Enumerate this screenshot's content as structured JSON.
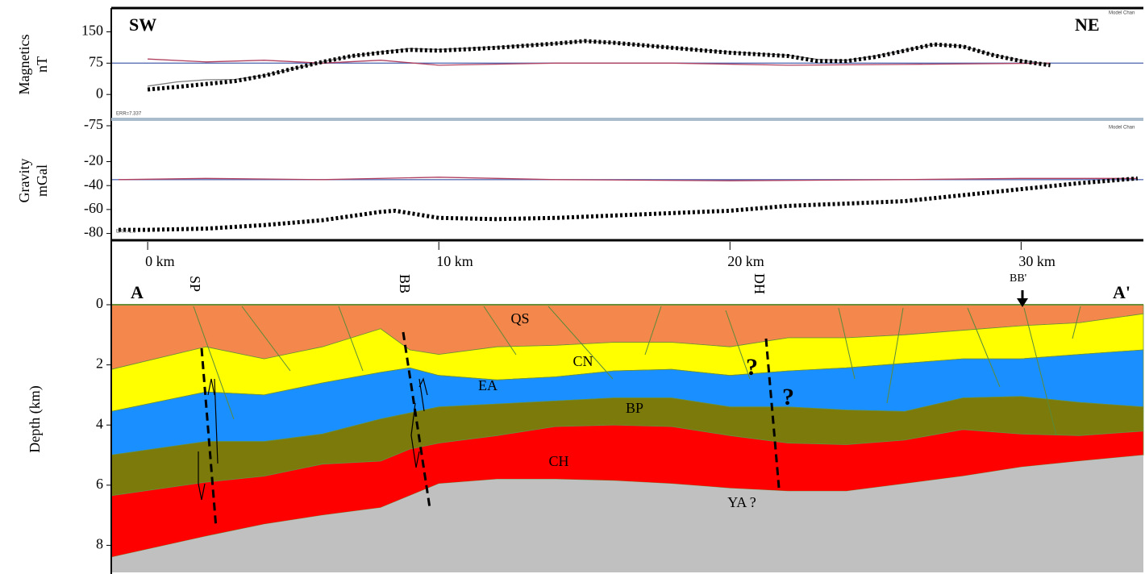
{
  "chart_data": [
    {
      "type": "line",
      "direction_left": "SW",
      "direction_right": "NE",
      "ylabel": [
        "Magnetics",
        "nT"
      ],
      "note": "Model Chan",
      "error": "ERR=7.337",
      "xlim": [
        -1.25,
        34.2
      ],
      "ylim": [
        -75,
        207
      ],
      "yticks": [
        150,
        75,
        0,
        -75
      ],
      "series": [
        {
          "color": "#5b6fb5",
          "style": "solid",
          "x": [
            -1.25,
            34.2
          ],
          "values": [
            75,
            75
          ]
        },
        {
          "color": "#b04060",
          "style": "solid",
          "x": [
            0,
            2,
            4,
            6,
            8,
            10,
            14,
            18,
            22,
            26,
            31
          ],
          "values": [
            85,
            78,
            82,
            75,
            82,
            70,
            75,
            75,
            70,
            72,
            75
          ]
        },
        {
          "color": "#808080",
          "style": "solid",
          "x": [
            0,
            1,
            2,
            3,
            4,
            5,
            6,
            7,
            8,
            9,
            10,
            12,
            14,
            15,
            16,
            18,
            20,
            22,
            23,
            24,
            25,
            26,
            27,
            28,
            29,
            30,
            31
          ],
          "values": [
            20,
            30,
            35,
            36,
            46,
            62,
            78,
            92,
            102,
            110,
            108,
            114,
            122,
            128,
            124,
            112,
            102,
            94,
            84,
            82,
            92,
            106,
            120,
            116,
            96,
            82,
            72
          ]
        },
        {
          "color": "#000000",
          "style": "dotted",
          "x": [
            0,
            1,
            2,
            3,
            4,
            5,
            6,
            7,
            8,
            9,
            10,
            12,
            14,
            15,
            16,
            18,
            20,
            22,
            23,
            24,
            25,
            26,
            27,
            28,
            29,
            30,
            31
          ],
          "values": [
            12,
            18,
            25,
            32,
            45,
            62,
            78,
            92,
            100,
            107,
            105,
            112,
            122,
            128,
            124,
            112,
            100,
            92,
            80,
            80,
            90,
            105,
            120,
            115,
            95,
            80,
            70
          ]
        }
      ]
    },
    {
      "type": "line",
      "ylabel": [
        "Gravity",
        "mGal"
      ],
      "note": "Model Chan",
      "error": "ERR=1.3",
      "xlim": [
        -1.25,
        34.2
      ],
      "ylim": [
        -85,
        14
      ],
      "yticks": [
        -20,
        -40,
        -60,
        -80
      ],
      "series": [
        {
          "color": "#5b6fb5",
          "style": "solid",
          "x": [
            -1.25,
            34.2
          ],
          "values": [
            -35,
            -35
          ]
        },
        {
          "color": "#b04060",
          "style": "solid",
          "x": [
            -1,
            2,
            6,
            10,
            14,
            20,
            26,
            30,
            34
          ],
          "values": [
            -35,
            -34,
            -35,
            -33,
            -35,
            -36,
            -35,
            -34,
            -34
          ]
        },
        {
          "color": "#000000",
          "style": "dotted",
          "x": [
            -1,
            0,
            2,
            4,
            6,
            8,
            8.5,
            10,
            12,
            14,
            16,
            18,
            20,
            22,
            24,
            26,
            28,
            30,
            32,
            34
          ],
          "values": [
            -77,
            -77,
            -76,
            -73,
            -69,
            -62,
            -61,
            -67,
            -68,
            -67,
            -65,
            -63,
            -61,
            -57,
            -55,
            -53,
            -48,
            -43,
            -38,
            -34
          ]
        }
      ]
    },
    {
      "type": "section",
      "ylabel": "Depth (km)",
      "ends": [
        "A",
        "A'"
      ],
      "wells": [
        "SP",
        "BB",
        "DH",
        "BB'"
      ],
      "questions": [
        "?",
        "?"
      ],
      "xlim": [
        -1.25,
        34.2
      ],
      "ylim": [
        8.9,
        0
      ],
      "xticks": [
        {
          "value": 0,
          "label": "0 km"
        },
        {
          "value": 10,
          "label": "10 km"
        },
        {
          "value": 20,
          "label": "20 km"
        },
        {
          "value": 30,
          "label": "30 km"
        }
      ],
      "yticks": [
        0,
        2,
        4,
        6,
        8
      ],
      "x": [
        -1.25,
        2,
        4,
        6,
        8,
        9,
        10,
        12,
        14,
        16,
        18,
        20,
        22,
        24,
        26,
        28,
        30,
        32,
        34.2
      ],
      "layers": [
        {
          "label": "QS",
          "color": "#f4874b",
          "base": [
            2.15,
            1.4,
            1.8,
            1.4,
            0.8,
            1.5,
            1.65,
            1.4,
            1.35,
            1.25,
            1.25,
            1.4,
            1.1,
            1.1,
            1.0,
            0.85,
            0.7,
            0.6,
            0.3
          ]
        },
        {
          "label": "CN",
          "color": "#ffff00",
          "base": [
            3.55,
            2.9,
            3.0,
            2.6,
            2.25,
            2.1,
            2.35,
            2.5,
            2.4,
            2.2,
            2.15,
            2.35,
            2.2,
            2.1,
            1.95,
            1.8,
            1.8,
            1.65,
            1.5
          ]
        },
        {
          "label": "EA",
          "color": "#1a8fff",
          "base": [
            5.0,
            4.55,
            4.55,
            4.3,
            3.8,
            3.6,
            3.4,
            3.3,
            3.2,
            3.1,
            3.1,
            3.4,
            3.4,
            3.5,
            3.55,
            3.1,
            3.05,
            3.25,
            3.4
          ]
        },
        {
          "label": "BP",
          "color": "#7b7a0a",
          "base": [
            6.35,
            5.9,
            5.7,
            5.3,
            5.2,
            4.8,
            4.6,
            4.35,
            4.05,
            4.0,
            4.05,
            4.35,
            4.6,
            4.65,
            4.5,
            4.15,
            4.3,
            4.35,
            4.2
          ]
        },
        {
          "label": "CH",
          "color": "#ff0000",
          "base": [
            8.4,
            7.7,
            7.3,
            7.0,
            6.75,
            6.35,
            5.95,
            5.8,
            5.8,
            5.85,
            5.95,
            6.1,
            6.2,
            6.2,
            5.95,
            5.7,
            5.4,
            5.2,
            5.0
          ]
        }
      ],
      "basement": {
        "label": "YA ?",
        "color": "#c0c0c0"
      }
    }
  ]
}
